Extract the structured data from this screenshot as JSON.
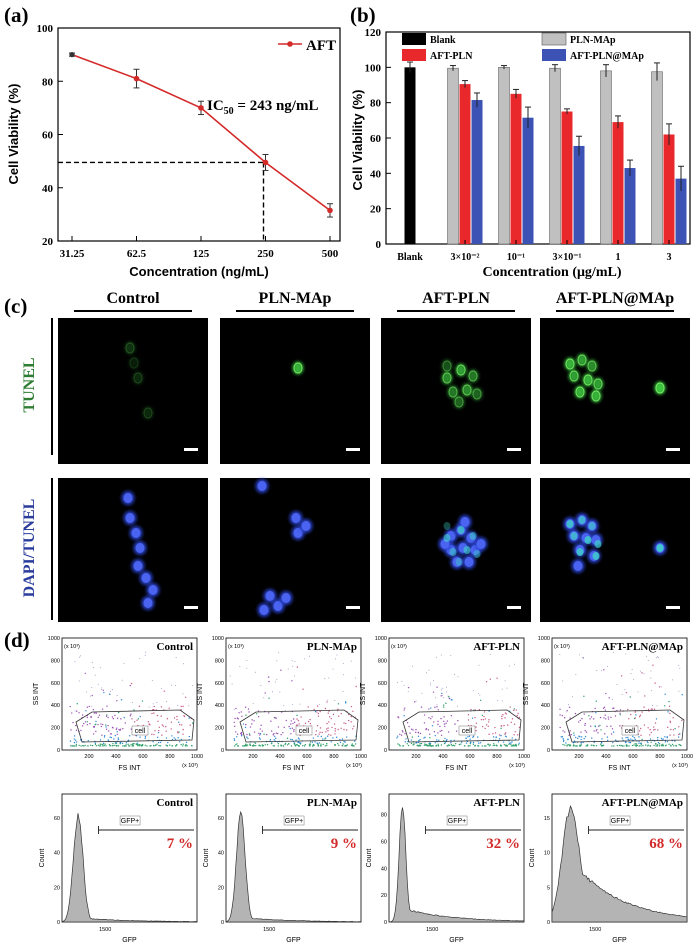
{
  "panel_labels": {
    "a": "(a)",
    "b": "(b)",
    "c": "(c)",
    "d": "(d)"
  },
  "colors": {
    "line_red": "#d42a2a",
    "blank": "#000000",
    "pln": "#c0c0c0",
    "aft": "#e8282a",
    "aftmap": "#3c53b5",
    "pct_red": "#d22a2a",
    "tunel_label": "#2e7d32",
    "dapi_label": "#2a3c9c"
  },
  "chart_data": [
    {
      "type": "line",
      "panel": "a",
      "title": "",
      "series_name": "AFT",
      "x": [
        "31.25",
        "62.5",
        "125",
        "250",
        "500"
      ],
      "y": [
        90,
        81,
        70,
        49.5,
        31.5
      ],
      "err": [
        0.6,
        3.5,
        2.5,
        3,
        2.5
      ],
      "ylim": [
        20,
        100
      ],
      "yticks": [
        "20",
        "40",
        "60",
        "80",
        "100"
      ],
      "xlabel": "Concentration (ng/mL)",
      "ylabel": "Cell Viability (%)",
      "annotation": "IC50 = 243 ng/mL",
      "ic50_y": 49.5
    },
    {
      "type": "bar",
      "panel": "b",
      "categories": [
        "Blank",
        "3×10⁻²",
        "10⁻¹",
        "3×10⁻¹",
        "1",
        "3"
      ],
      "series": [
        {
          "name": "Blank",
          "values": [
            100,
            null,
            null,
            null,
            null,
            null
          ],
          "err": [
            3,
            null,
            null,
            null,
            null,
            null
          ]
        },
        {
          "name": "PLN-MAp",
          "values": [
            null,
            99.5,
            100,
            99.5,
            98,
            97.5
          ],
          "err": [
            null,
            1.5,
            1,
            2,
            3.5,
            5
          ]
        },
        {
          "name": "AFT-PLN",
          "values": [
            null,
            90.5,
            85,
            75,
            69,
            62
          ],
          "err": [
            null,
            2,
            2.5,
            1.5,
            3.5,
            6
          ]
        },
        {
          "name": "AFT-PLN@MAp",
          "values": [
            null,
            81.5,
            71.5,
            55.5,
            43,
            37
          ],
          "err": [
            null,
            4,
            6,
            5.5,
            4.5,
            7
          ]
        }
      ],
      "ylim": [
        0,
        120
      ],
      "yticks": [
        "0",
        "20",
        "40",
        "60",
        "80",
        "100",
        "120"
      ],
      "xlabel": "Concentration (μg/mL)",
      "ylabel": "Cell Viability (%)"
    }
  ],
  "panel_c": {
    "columns": [
      "Control",
      "PLN-MAp",
      "AFT-PLN",
      "AFT-PLN@MAp"
    ],
    "row_labels": [
      "TUNEL",
      "DAPI/TUNEL"
    ]
  },
  "panel_d": {
    "scatter": {
      "titles": [
        "Control",
        "PLN-MAp",
        "AFT-PLN",
        "AFT-PLN@MAp"
      ],
      "ylabel": "SS INT",
      "xlabel": "FS INT",
      "unit": "(x 10³)",
      "gate_label": "cell",
      "xticks": [
        "200",
        "400",
        "600",
        "800",
        "1000"
      ],
      "yticks": [
        "0",
        "200",
        "400",
        "600",
        "800",
        "1000"
      ]
    },
    "histogram": {
      "titles": [
        "Control",
        "PLN-MAp",
        "AFT-PLN",
        "AFT-PLN@MAp"
      ],
      "percentages": [
        "7 %",
        "9 %",
        "32 %",
        "68 %"
      ],
      "gate_label": "GFP+",
      "ylabel": "Count",
      "xlabel": "GFP",
      "xtick": "1500",
      "yticks": [
        [
          "0",
          "20",
          "40",
          "60"
        ],
        [
          "0",
          "20",
          "40",
          "60"
        ],
        [
          "0",
          "20",
          "40",
          "60",
          "80"
        ],
        [
          "0",
          "5",
          "10",
          "15"
        ]
      ]
    }
  }
}
